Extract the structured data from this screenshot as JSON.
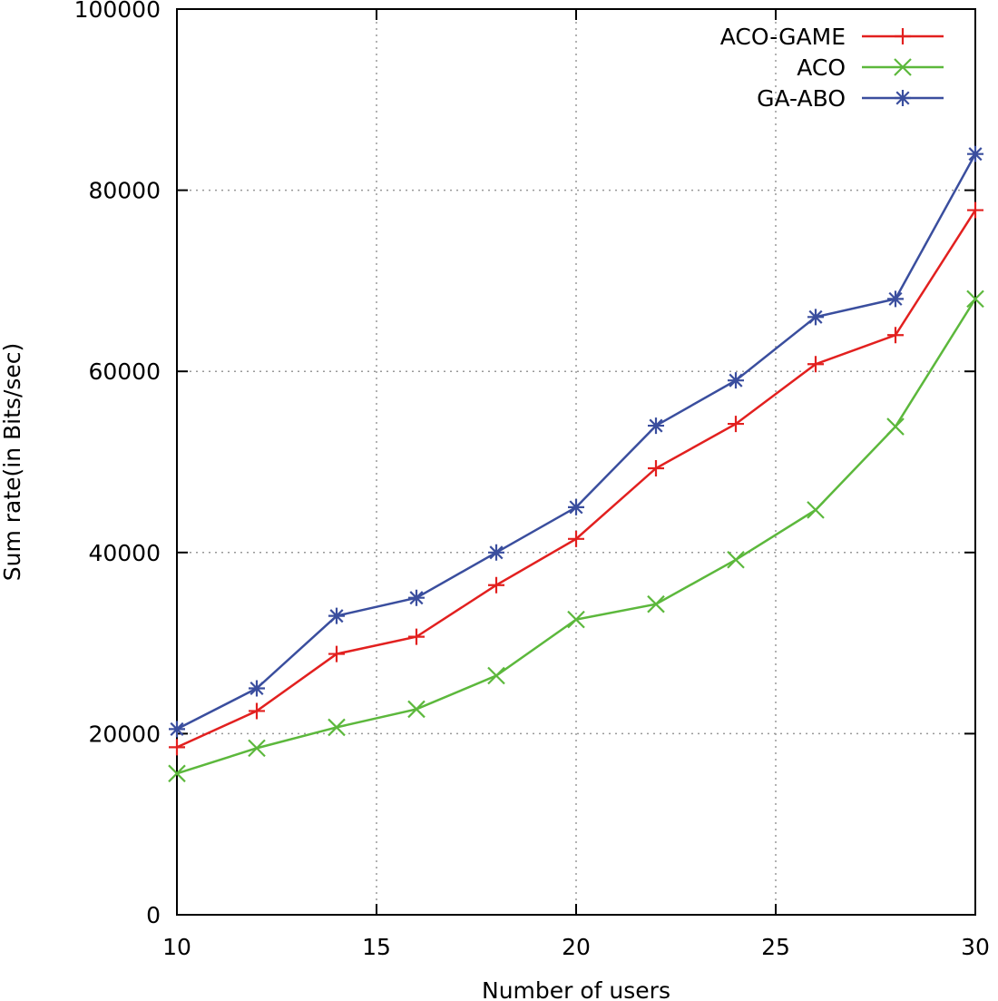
{
  "chart_data": {
    "type": "line",
    "title": "",
    "xlabel": "Number of users",
    "ylabel": "Sum rate(in Bits/sec)",
    "xlim": [
      10,
      30
    ],
    "ylim": [
      0,
      100000
    ],
    "xticks": [
      "10",
      "15",
      "20",
      "25",
      "30"
    ],
    "yticks": [
      "0",
      "20000",
      "40000",
      "60000",
      "80000",
      "100000"
    ],
    "grid": true,
    "legend_position": "top-right",
    "x": [
      10,
      12,
      14,
      16,
      18,
      20,
      22,
      24,
      26,
      28,
      30
    ],
    "series": [
      {
        "name": "ACO-GAME",
        "color": "#e2201f",
        "marker": "plus",
        "values": [
          18500,
          22500,
          28800,
          30700,
          36400,
          41500,
          49300,
          54200,
          60800,
          64000,
          77800
        ]
      },
      {
        "name": "ACO",
        "color": "#5cb83c",
        "marker": "cross",
        "values": [
          15600,
          18400,
          20700,
          22700,
          26400,
          32600,
          34300,
          39200,
          44700,
          53900,
          68000
        ]
      },
      {
        "name": "GA-ABO",
        "color": "#3a4e9e",
        "marker": "asterisk",
        "values": [
          20500,
          25000,
          33000,
          35000,
          40000,
          45000,
          54000,
          59000,
          66000,
          68000,
          84000
        ]
      }
    ]
  }
}
